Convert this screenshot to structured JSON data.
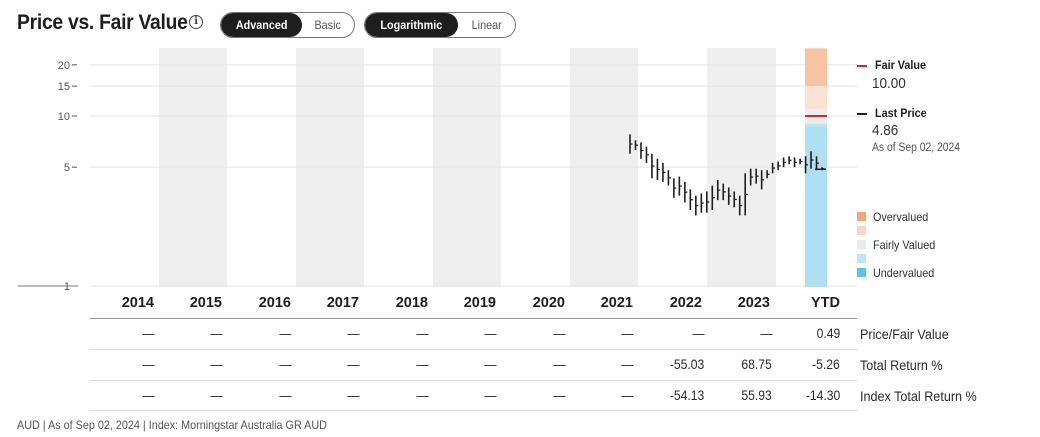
{
  "header": {
    "title": "Price vs. Fair Value",
    "info_icon": "info-icon",
    "view_toggle": [
      "Advanced",
      "Basic"
    ],
    "view_active": "Advanced",
    "scale_toggle": [
      "Logarithmic",
      "Linear"
    ],
    "scale_active": "Logarithmic"
  },
  "legend": {
    "fair_value_label": "Fair Value",
    "fair_value": "10.00",
    "last_price_label": "Last Price",
    "last_price": "4.86",
    "last_price_date": "As of Sep 02, 2024",
    "overvalued": "Overvalued",
    "fairly_valued": "Fairly Valued",
    "undervalued": "Undervalued",
    "colors": {
      "fair_value_line": "#d9262b",
      "last_price_line": "#1e1e1e",
      "overvalued_strong": "#f6c4a2",
      "overvalued_light": "#fbe3d3",
      "fairly_valued": "#e9eded",
      "undervalued_light": "#bfe5f3",
      "undervalued_strong": "#6cc8ea"
    }
  },
  "table": {
    "years": [
      "2014",
      "2015",
      "2016",
      "2017",
      "2018",
      "2019",
      "2020",
      "2021",
      "2022",
      "2023",
      "YTD"
    ],
    "rows": [
      {
        "label": "Price/Fair Value",
        "values": [
          "—",
          "—",
          "—",
          "—",
          "—",
          "—",
          "—",
          "—",
          "—",
          "—",
          "0.49"
        ]
      },
      {
        "label": "Total Return %",
        "values": [
          "—",
          "—",
          "—",
          "—",
          "—",
          "—",
          "—",
          "—",
          "-55.03",
          "68.75",
          "-5.26"
        ]
      },
      {
        "label": "Index Total Return %",
        "values": [
          "—",
          "—",
          "—",
          "—",
          "—",
          "—",
          "—",
          "—",
          "-54.13",
          "55.93",
          "-14.30"
        ]
      }
    ]
  },
  "footer": "AUD | As of Sep 02, 2024 | Index: Morningstar Australia GR AUD",
  "chart_data": {
    "type": "bar",
    "scale": "log",
    "ylim": [
      1,
      25
    ],
    "yticks": [
      "1",
      "5",
      "10",
      "15",
      "20"
    ],
    "categories": [
      "2014",
      "2015",
      "2016",
      "2017",
      "2018",
      "2019",
      "2020",
      "2021",
      "2022",
      "2023",
      "YTD"
    ],
    "fair_value": 10.0,
    "last_price": 4.86,
    "valuation_bands_ytd": [
      {
        "name": "Overvalued",
        "from": 15,
        "to": 25
      },
      {
        "name": "Overvalued",
        "from": 11,
        "to": 15
      },
      {
        "name": "Fairly Valued",
        "from": 9,
        "to": 11
      },
      {
        "name": "Undervalued",
        "from": 1,
        "to": 9
      }
    ],
    "series": [
      {
        "type": "ohlc",
        "ranges": [
          [
            7.8,
            6.0
          ],
          [
            7.2,
            6.3
          ],
          [
            7.0,
            5.6
          ],
          [
            6.6,
            5.3
          ],
          [
            6.0,
            4.3
          ],
          [
            5.6,
            4.2
          ],
          [
            5.3,
            4.1
          ],
          [
            4.8,
            3.9
          ],
          [
            4.3,
            3.3
          ],
          [
            4.4,
            3.4
          ],
          [
            4.1,
            3.1
          ],
          [
            3.7,
            2.8
          ],
          [
            3.4,
            2.6
          ],
          [
            3.5,
            2.7
          ],
          [
            3.6,
            2.7
          ],
          [
            3.9,
            2.8
          ],
          [
            4.2,
            3.2
          ],
          [
            4.0,
            3.2
          ],
          [
            3.8,
            3.0
          ],
          [
            3.6,
            2.9
          ],
          [
            3.4,
            2.6
          ],
          [
            4.6,
            2.6
          ],
          [
            4.9,
            3.9
          ],
          [
            4.9,
            4.0
          ],
          [
            4.8,
            3.7
          ],
          [
            4.8,
            4.3
          ],
          [
            5.3,
            4.6
          ],
          [
            5.4,
            4.8
          ],
          [
            5.7,
            5.0
          ],
          [
            5.8,
            5.2
          ],
          [
            5.7,
            5.0
          ],
          [
            5.6,
            5.2
          ],
          [
            5.8,
            4.6
          ],
          [
            6.2,
            4.9
          ],
          [
            5.8,
            4.8
          ],
          [
            5.0,
            4.8
          ]
        ]
      }
    ],
    "xlabel": "",
    "ylabel": ""
  }
}
